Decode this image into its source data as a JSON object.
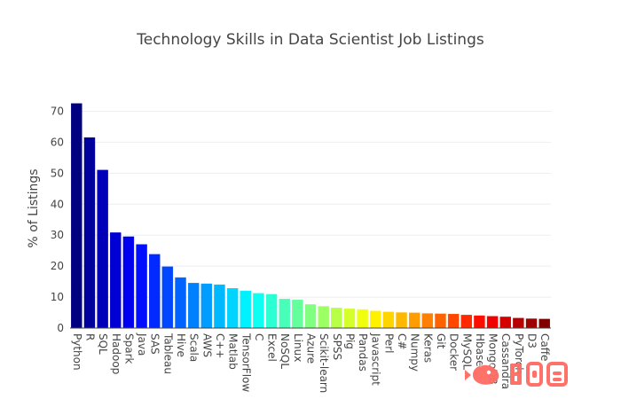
{
  "chart_data": {
    "type": "bar",
    "title": "Technology Skills in Data Scientist Job Listings",
    "xlabel": "",
    "ylabel": "% of Listings",
    "ylim": [
      0,
      75
    ],
    "yticks": [
      0,
      10,
      20,
      30,
      40,
      50,
      60,
      70
    ],
    "grid": true,
    "colorscale": "jet",
    "categories": [
      "Python",
      "R",
      "SQL",
      "Hadoop",
      "Spark",
      "Java",
      "SAS",
      "Tableau",
      "Hive",
      "Scala",
      "AWS",
      "C++",
      "Matlab",
      "TensorFlow",
      "C",
      "Excel",
      "NoSQL",
      "Linux",
      "Azure",
      "Scikit-learn",
      "SPSS",
      "Pig",
      "Pandas",
      "Javascript",
      "Perl",
      "C#",
      "Numpy",
      "Keras",
      "Git",
      "Docker",
      "MySQL",
      "Hbase",
      "MongoDB",
      "Cassandra",
      "PyTorch",
      "D3",
      "Caffe"
    ],
    "values": [
      72.5,
      61.5,
      51.0,
      30.8,
      29.5,
      27.0,
      23.8,
      19.8,
      16.3,
      14.5,
      14.3,
      14.0,
      12.8,
      12.0,
      11.2,
      10.9,
      9.4,
      9.1,
      7.6,
      7.0,
      6.5,
      6.2,
      6.0,
      5.5,
      5.2,
      5.0,
      4.9,
      4.7,
      4.6,
      4.5,
      4.2,
      4.0,
      3.8,
      3.6,
      3.2,
      3.0,
      2.9
    ]
  }
}
